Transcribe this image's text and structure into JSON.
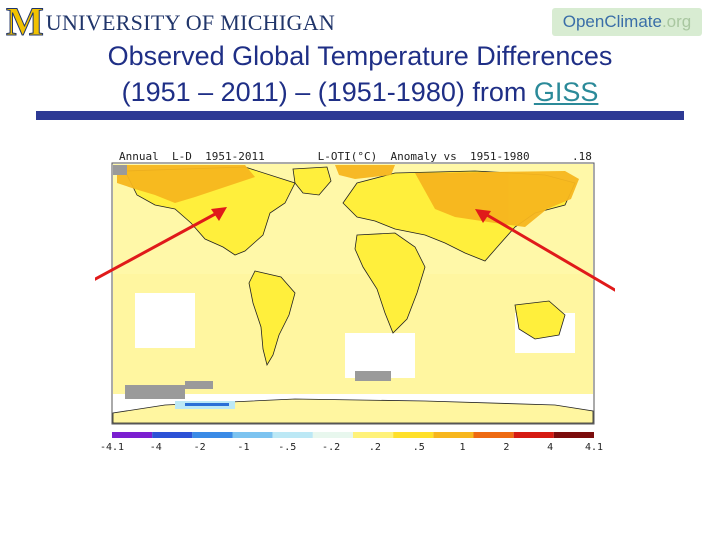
{
  "header": {
    "university_initial": "M",
    "university_name": "UNIVERSITY OF MICHIGAN",
    "partner_open": "Open",
    "partner_climate": "Climate",
    "partner_org": ".org"
  },
  "slide": {
    "title_line1": "Observed Global Temperature Differences",
    "title_line2_prefix": "(1951 – 2011) – (1951-1980) from ",
    "title_link": "GISS"
  },
  "map": {
    "header_left": "Annual  L-D  1951-2011        L-OTI(°C)  Anomaly vs  1951-1980",
    "header_right": ".18",
    "colors": {
      "ocean_light": "#fff8a8",
      "land_yellow": "#ffef3c",
      "warm_orange": "#f7b61e",
      "nodata_gray": "#9a9a9a",
      "arrow_red": "#e01a1a",
      "coast": "#222222",
      "cool_blue": "#2a6fd6"
    },
    "legend": {
      "ticks": [
        "-4.1",
        "-4",
        "-2",
        "-1",
        "-.5",
        "-.2",
        ".2",
        ".5",
        "1",
        "2",
        "4",
        "4.1"
      ],
      "bin_colors": [
        "#7b1fd0",
        "#2c52d6",
        "#3a8ae6",
        "#7cc3f0",
        "#bce8f5",
        "#e8f7ee",
        "#fff27a",
        "#ffe02a",
        "#f7b61e",
        "#ee6a12",
        "#d51a12",
        "#7b0c0c"
      ]
    },
    "annotations": [
      "arrow-north-america-warming",
      "arrow-siberia-warming"
    ]
  }
}
